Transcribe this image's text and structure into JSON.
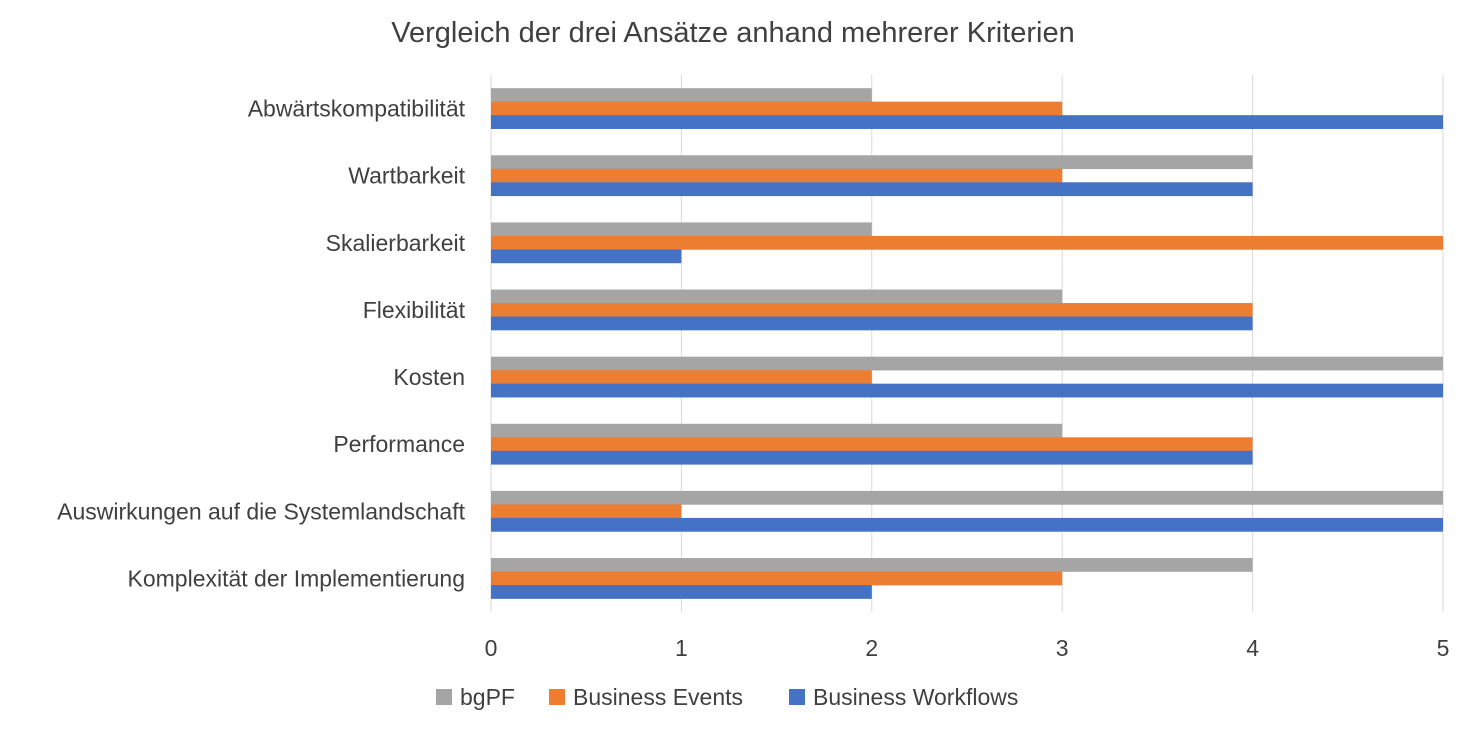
{
  "chart_data": {
    "type": "bar",
    "orientation": "horizontal",
    "title": "Vergleich der drei Ansätze anhand mehrerer Kriterien",
    "xlabel": "",
    "ylabel": "",
    "categories": [
      "Abwärtskompatibilität",
      "Wartbarkeit",
      "Skalierbarkeit",
      "Flexibilität",
      "Kosten",
      "Performance",
      "Auswirkungen auf die Systemlandschaft",
      "Komplexität der Implementierung"
    ],
    "series": [
      {
        "name": "bgPF",
        "color": "#a5a5a5",
        "values": [
          2,
          4,
          2,
          3,
          5,
          3,
          5,
          4
        ]
      },
      {
        "name": "Business Events",
        "color": "#ed7d31",
        "values": [
          3,
          3,
          5,
          4,
          2,
          4,
          1,
          3
        ]
      },
      {
        "name": "Business Workflows",
        "color": "#4472c4",
        "values": [
          5,
          4,
          1,
          4,
          5,
          4,
          5,
          2
        ]
      }
    ],
    "xlim": [
      0,
      5
    ],
    "xticks": [
      "0",
      "1",
      "2",
      "3",
      "4",
      "5"
    ],
    "grid": true,
    "legend_position": "bottom"
  }
}
